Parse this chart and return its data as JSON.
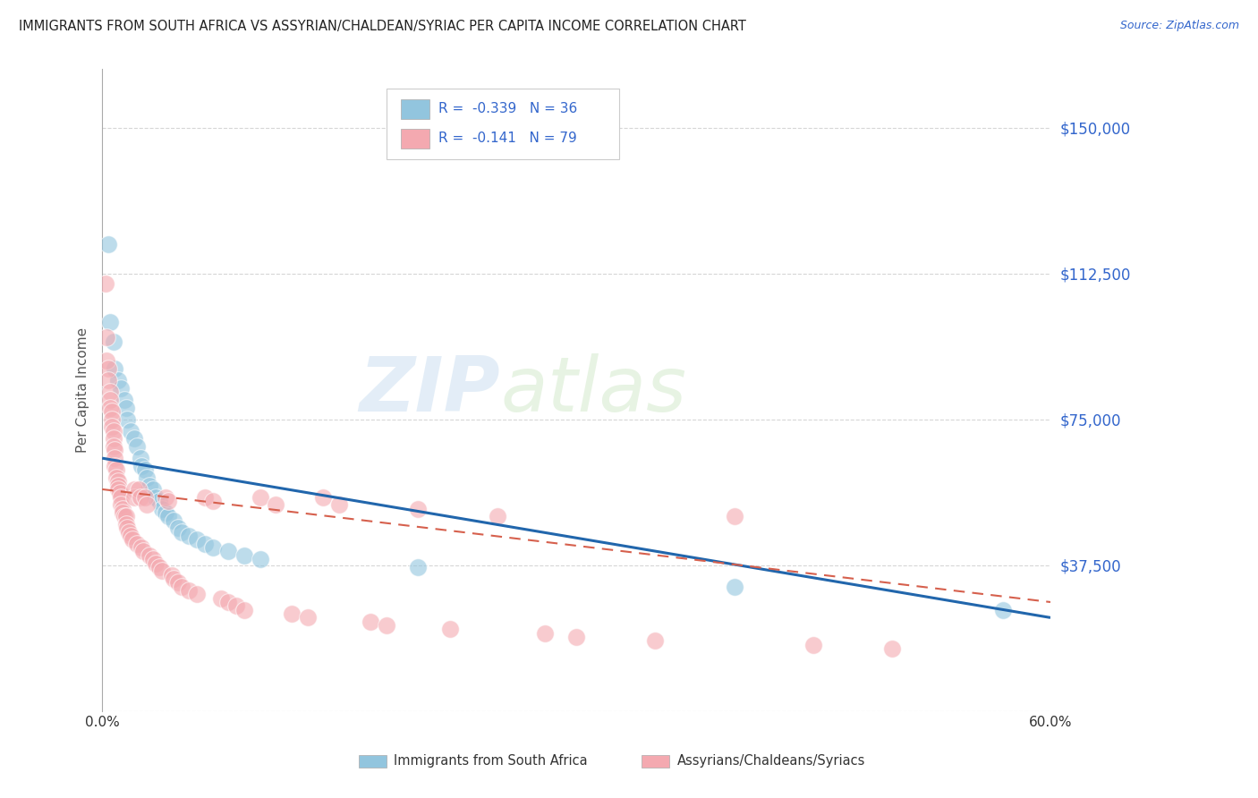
{
  "title": "IMMIGRANTS FROM SOUTH AFRICA VS ASSYRIAN/CHALDEAN/SYRIAC PER CAPITA INCOME CORRELATION CHART",
  "source": "Source: ZipAtlas.com",
  "ylabel": "Per Capita Income",
  "xlim": [
    0,
    0.6
  ],
  "ylim": [
    0,
    165000
  ],
  "yticks": [
    0,
    37500,
    75000,
    112500,
    150000
  ],
  "ytick_labels": [
    "",
    "$37,500",
    "$75,000",
    "$112,500",
    "$150,000"
  ],
  "xticks": [
    0.0,
    0.1,
    0.2,
    0.3,
    0.4,
    0.5,
    0.6
  ],
  "xtick_labels": [
    "0.0%",
    "",
    "",
    "",
    "",
    "",
    "60.0%"
  ],
  "watermark_zip": "ZIP",
  "watermark_atlas": "atlas",
  "legend_blue_r": "-0.339",
  "legend_blue_n": "36",
  "legend_pink_r": "-0.141",
  "legend_pink_n": "79",
  "blue_color": "#92c5de",
  "pink_color": "#f4a9b0",
  "blue_line_color": "#2166ac",
  "pink_line_color": "#d6604d",
  "blue_scatter": [
    [
      0.004,
      120000
    ],
    [
      0.005,
      100000
    ],
    [
      0.007,
      95000
    ],
    [
      0.008,
      88000
    ],
    [
      0.01,
      85000
    ],
    [
      0.012,
      83000
    ],
    [
      0.014,
      80000
    ],
    [
      0.015,
      78000
    ],
    [
      0.016,
      75000
    ],
    [
      0.018,
      72000
    ],
    [
      0.02,
      70000
    ],
    [
      0.022,
      68000
    ],
    [
      0.024,
      65000
    ],
    [
      0.025,
      63000
    ],
    [
      0.027,
      62000
    ],
    [
      0.028,
      60000
    ],
    [
      0.03,
      58000
    ],
    [
      0.032,
      57000
    ],
    [
      0.034,
      55000
    ],
    [
      0.036,
      54000
    ],
    [
      0.038,
      52000
    ],
    [
      0.04,
      51000
    ],
    [
      0.042,
      50000
    ],
    [
      0.045,
      49000
    ],
    [
      0.048,
      47000
    ],
    [
      0.05,
      46000
    ],
    [
      0.055,
      45000
    ],
    [
      0.06,
      44000
    ],
    [
      0.065,
      43000
    ],
    [
      0.07,
      42000
    ],
    [
      0.08,
      41000
    ],
    [
      0.09,
      40000
    ],
    [
      0.1,
      39000
    ],
    [
      0.2,
      37000
    ],
    [
      0.4,
      32000
    ],
    [
      0.57,
      26000
    ]
  ],
  "pink_scatter": [
    [
      0.002,
      110000
    ],
    [
      0.003,
      96000
    ],
    [
      0.003,
      90000
    ],
    [
      0.004,
      88000
    ],
    [
      0.004,
      85000
    ],
    [
      0.005,
      82000
    ],
    [
      0.005,
      80000
    ],
    [
      0.005,
      78000
    ],
    [
      0.006,
      77000
    ],
    [
      0.006,
      75000
    ],
    [
      0.006,
      73000
    ],
    [
      0.007,
      72000
    ],
    [
      0.007,
      70000
    ],
    [
      0.007,
      68000
    ],
    [
      0.008,
      67000
    ],
    [
      0.008,
      65000
    ],
    [
      0.008,
      63000
    ],
    [
      0.009,
      62000
    ],
    [
      0.009,
      60000
    ],
    [
      0.01,
      59000
    ],
    [
      0.01,
      58000
    ],
    [
      0.01,
      57000
    ],
    [
      0.011,
      56000
    ],
    [
      0.012,
      55000
    ],
    [
      0.012,
      53000
    ],
    [
      0.013,
      52000
    ],
    [
      0.013,
      51000
    ],
    [
      0.014,
      50000
    ],
    [
      0.015,
      50000
    ],
    [
      0.015,
      48000
    ],
    [
      0.016,
      47000
    ],
    [
      0.017,
      46000
    ],
    [
      0.018,
      45000
    ],
    [
      0.019,
      44000
    ],
    [
      0.02,
      57000
    ],
    [
      0.02,
      55000
    ],
    [
      0.022,
      43000
    ],
    [
      0.023,
      57000
    ],
    [
      0.024,
      55000
    ],
    [
      0.025,
      42000
    ],
    [
      0.026,
      41000
    ],
    [
      0.027,
      55000
    ],
    [
      0.028,
      53000
    ],
    [
      0.03,
      40000
    ],
    [
      0.032,
      39000
    ],
    [
      0.034,
      38000
    ],
    [
      0.036,
      37000
    ],
    [
      0.038,
      36000
    ],
    [
      0.04,
      55000
    ],
    [
      0.042,
      54000
    ],
    [
      0.044,
      35000
    ],
    [
      0.045,
      34000
    ],
    [
      0.048,
      33000
    ],
    [
      0.05,
      32000
    ],
    [
      0.055,
      31000
    ],
    [
      0.06,
      30000
    ],
    [
      0.065,
      55000
    ],
    [
      0.07,
      54000
    ],
    [
      0.075,
      29000
    ],
    [
      0.08,
      28000
    ],
    [
      0.085,
      27000
    ],
    [
      0.09,
      26000
    ],
    [
      0.1,
      55000
    ],
    [
      0.11,
      53000
    ],
    [
      0.12,
      25000
    ],
    [
      0.13,
      24000
    ],
    [
      0.14,
      55000
    ],
    [
      0.15,
      53000
    ],
    [
      0.17,
      23000
    ],
    [
      0.18,
      22000
    ],
    [
      0.2,
      52000
    ],
    [
      0.22,
      21000
    ],
    [
      0.25,
      50000
    ],
    [
      0.28,
      20000
    ],
    [
      0.3,
      19000
    ],
    [
      0.35,
      18000
    ],
    [
      0.4,
      50000
    ],
    [
      0.45,
      17000
    ],
    [
      0.5,
      16000
    ]
  ]
}
